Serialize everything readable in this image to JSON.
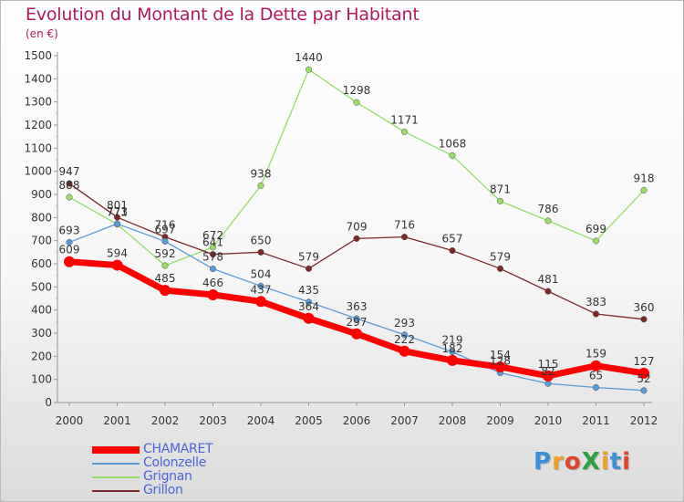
{
  "header": {
    "title": "Evolution du Montant de la Dette par Habitant",
    "subtitle": "(en €)"
  },
  "logo": {
    "text": "ProXiti",
    "letters": [
      "P",
      "r",
      "o",
      "X",
      "i",
      "t",
      "i"
    ],
    "colors": [
      "#3a8fd6",
      "#f0a020",
      "#e0442a",
      "#2e9e3e",
      "#f0a020",
      "#3a8fd6",
      "#e0442a"
    ]
  },
  "chart_data": {
    "type": "line",
    "title": "Evolution du Montant de la Dette par Habitant",
    "ylabel": "(en €)",
    "xlabel": "",
    "x": [
      "2000",
      "2001",
      "2002",
      "2003",
      "2004",
      "2005",
      "2006",
      "2007",
      "2008",
      "2009",
      "2010",
      "2011",
      "2012"
    ],
    "y_ticks": [
      "0",
      "100",
      "200",
      "300",
      "400",
      "500",
      "600",
      "700",
      "800",
      "900",
      "1000",
      "1100",
      "1200",
      "1300",
      "1400",
      "1500"
    ],
    "ylim": [
      0,
      1500
    ],
    "grid": false,
    "legend_position": "bottom-left",
    "series": [
      {
        "name": "CHAMARET",
        "color": "#ff0000",
        "values": [
          609,
          594,
          485,
          466,
          437,
          364,
          297,
          222,
          182,
          154,
          115,
          159,
          127
        ],
        "labels": [
          "609",
          "594",
          "485",
          "466",
          "437",
          "364",
          "297",
          "222",
          "182",
          "154",
          "115",
          "159",
          "127"
        ]
      },
      {
        "name": "Colonzelle",
        "color": "#5b9bd5",
        "values": [
          693,
          773,
          697,
          578,
          504,
          435,
          363,
          293,
          219,
          128,
          82,
          65,
          52
        ],
        "labels": [
          "693",
          "773",
          "697",
          "578",
          "504",
          "435",
          "363",
          "293",
          "219",
          "128",
          "82",
          "65",
          "52"
        ]
      },
      {
        "name": "Grignan",
        "color": "#99dd66",
        "values": [
          888,
          771,
          592,
          672,
          938,
          1440,
          1298,
          1171,
          1068,
          871,
          786,
          699,
          918
        ],
        "labels": [
          "888",
          "771",
          "592",
          "672",
          "938",
          "1440",
          "1298",
          "1171",
          "1068",
          "871",
          "786",
          "699",
          "918"
        ]
      },
      {
        "name": "Grillon",
        "color": "#7a2828",
        "values": [
          947,
          801,
          716,
          641,
          650,
          579,
          709,
          716,
          657,
          579,
          481,
          383,
          360
        ],
        "labels": [
          "947",
          "801",
          "716",
          "641",
          "650",
          "579",
          "709",
          "716",
          "657",
          "579",
          "481",
          "383",
          "360"
        ]
      }
    ]
  }
}
